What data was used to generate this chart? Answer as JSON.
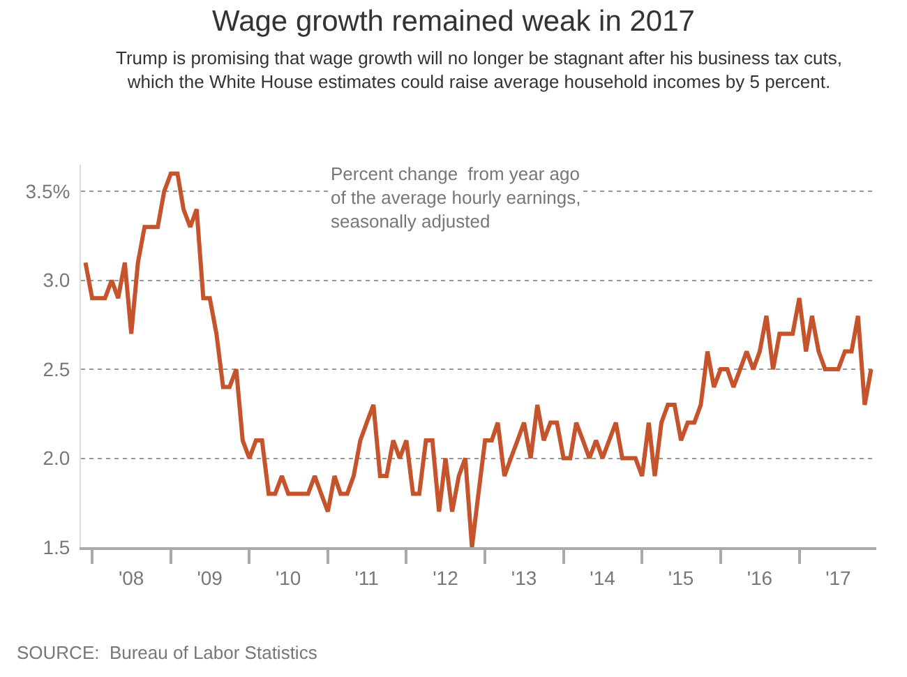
{
  "chart_data": {
    "type": "line",
    "title": "Wage growth remained weak in 2017",
    "subtitle": "Trump is promising that wage growth will no longer be stagnant after his business tax cuts,\nwhich the White House estimates could raise average household incomes by 5 percent.",
    "annotations": [
      "Percent change  from year ago\nof the average hourly earnings,\nseasonally adjusted",
      "SOURCE:  Bureau of Labor Statistics"
    ],
    "x": [
      "2007-12",
      "2008-01",
      "2008-02",
      "2008-03",
      "2008-04",
      "2008-05",
      "2008-06",
      "2008-07",
      "2008-08",
      "2008-09",
      "2008-10",
      "2008-11",
      "2008-12",
      "2009-01",
      "2009-02",
      "2009-03",
      "2009-04",
      "2009-05",
      "2009-06",
      "2009-07",
      "2009-08",
      "2009-09",
      "2009-10",
      "2009-11",
      "2009-12",
      "2010-01",
      "2010-02",
      "2010-03",
      "2010-04",
      "2010-05",
      "2010-06",
      "2010-07",
      "2010-08",
      "2010-09",
      "2010-10",
      "2010-11",
      "2010-12",
      "2011-01",
      "2011-02",
      "2011-03",
      "2011-04",
      "2011-05",
      "2011-06",
      "2011-07",
      "2011-08",
      "2011-09",
      "2011-10",
      "2011-11",
      "2011-12",
      "2012-01",
      "2012-02",
      "2012-03",
      "2012-04",
      "2012-05",
      "2012-06",
      "2012-07",
      "2012-08",
      "2012-09",
      "2012-10",
      "2012-11",
      "2012-12",
      "2013-01",
      "2013-02",
      "2013-03",
      "2013-04",
      "2013-05",
      "2013-06",
      "2013-07",
      "2013-08",
      "2013-09",
      "2013-10",
      "2013-11",
      "2013-12",
      "2014-01",
      "2014-02",
      "2014-03",
      "2014-04",
      "2014-05",
      "2014-06",
      "2014-07",
      "2014-08",
      "2014-09",
      "2014-10",
      "2014-11",
      "2014-12",
      "2015-01",
      "2015-02",
      "2015-03",
      "2015-04",
      "2015-05",
      "2015-06",
      "2015-07",
      "2015-08",
      "2015-09",
      "2015-10",
      "2015-11",
      "2015-12",
      "2016-01",
      "2016-02",
      "2016-03",
      "2016-04",
      "2016-05",
      "2016-06",
      "2016-07",
      "2016-08",
      "2016-09",
      "2016-10",
      "2016-11",
      "2016-12",
      "2017-01",
      "2017-02",
      "2017-03",
      "2017-04",
      "2017-05",
      "2017-06",
      "2017-07",
      "2017-08",
      "2017-09",
      "2017-10",
      "2017-11",
      "2017-12"
    ],
    "series": [
      {
        "color": "#c5532b",
        "values": [
          3.1,
          2.9,
          2.9,
          2.9,
          3.0,
          2.9,
          3.1,
          2.7,
          3.1,
          3.3,
          3.3,
          3.3,
          3.5,
          3.6,
          3.6,
          3.4,
          3.3,
          3.4,
          2.9,
          2.9,
          2.7,
          2.4,
          2.4,
          2.5,
          2.1,
          2.0,
          2.1,
          2.1,
          1.8,
          1.8,
          1.9,
          1.8,
          1.8,
          1.8,
          1.8,
          1.9,
          1.8,
          1.7,
          1.9,
          1.8,
          1.8,
          1.9,
          2.1,
          2.2,
          2.3,
          1.9,
          1.9,
          2.1,
          2.0,
          2.1,
          1.8,
          1.8,
          2.1,
          2.1,
          1.7,
          2.0,
          1.7,
          1.9,
          2.0,
          1.5,
          1.8,
          2.1,
          2.1,
          2.2,
          1.9,
          2.0,
          2.1,
          2.2,
          2.0,
          2.3,
          2.1,
          2.2,
          2.2,
          2.0,
          2.0,
          2.2,
          2.1,
          2.0,
          2.1,
          2.0,
          2.1,
          2.2,
          2.0,
          2.0,
          2.0,
          1.9,
          2.2,
          1.9,
          2.2,
          2.3,
          2.3,
          2.1,
          2.2,
          2.2,
          2.3,
          2.6,
          2.4,
          2.5,
          2.5,
          2.4,
          2.5,
          2.6,
          2.5,
          2.6,
          2.8,
          2.5,
          2.7,
          2.7,
          2.7,
          2.9,
          2.6,
          2.8,
          2.6,
          2.5,
          2.5,
          2.5,
          2.6,
          2.6,
          2.8,
          2.3,
          2.5
        ]
      }
    ],
    "xlim": [
      "2007-11-10",
      "2017-12-25"
    ],
    "xticks": [
      {
        "value": "2008-01-01",
        "label": null
      },
      {
        "value": "2008-07-01",
        "label": "'08"
      },
      {
        "value": "2009-01-01",
        "label": null
      },
      {
        "value": "2009-07-01",
        "label": "'09"
      },
      {
        "value": "2010-01-01",
        "label": null
      },
      {
        "value": "2010-07-01",
        "label": "'10"
      },
      {
        "value": "2011-01-01",
        "label": null
      },
      {
        "value": "2011-07-01",
        "label": "'11"
      },
      {
        "value": "2012-01-01",
        "label": null
      },
      {
        "value": "2012-07-01",
        "label": "'12"
      },
      {
        "value": "2013-01-01",
        "label": null
      },
      {
        "value": "2013-07-01",
        "label": "'13"
      },
      {
        "value": "2014-01-01",
        "label": null
      },
      {
        "value": "2014-07-01",
        "label": "'14"
      },
      {
        "value": "2015-01-01",
        "label": null
      },
      {
        "value": "2015-07-01",
        "label": "'15"
      },
      {
        "value": "2016-01-01",
        "label": null
      },
      {
        "value": "2016-07-01",
        "label": "'16"
      },
      {
        "value": "2017-01-01",
        "label": null
      },
      {
        "value": "2017-07-01",
        "label": "'17"
      }
    ],
    "ylim": [
      1.5,
      3.65
    ],
    "yticks": [
      1.5,
      {
        "value": 2.0,
        "label": "2.0"
      },
      2.5,
      {
        "value": 3.0,
        "label": "3.0"
      },
      {
        "value": 3.5,
        "label": "3.5%"
      }
    ],
    "grid": "y",
    "line_style": "solid"
  }
}
